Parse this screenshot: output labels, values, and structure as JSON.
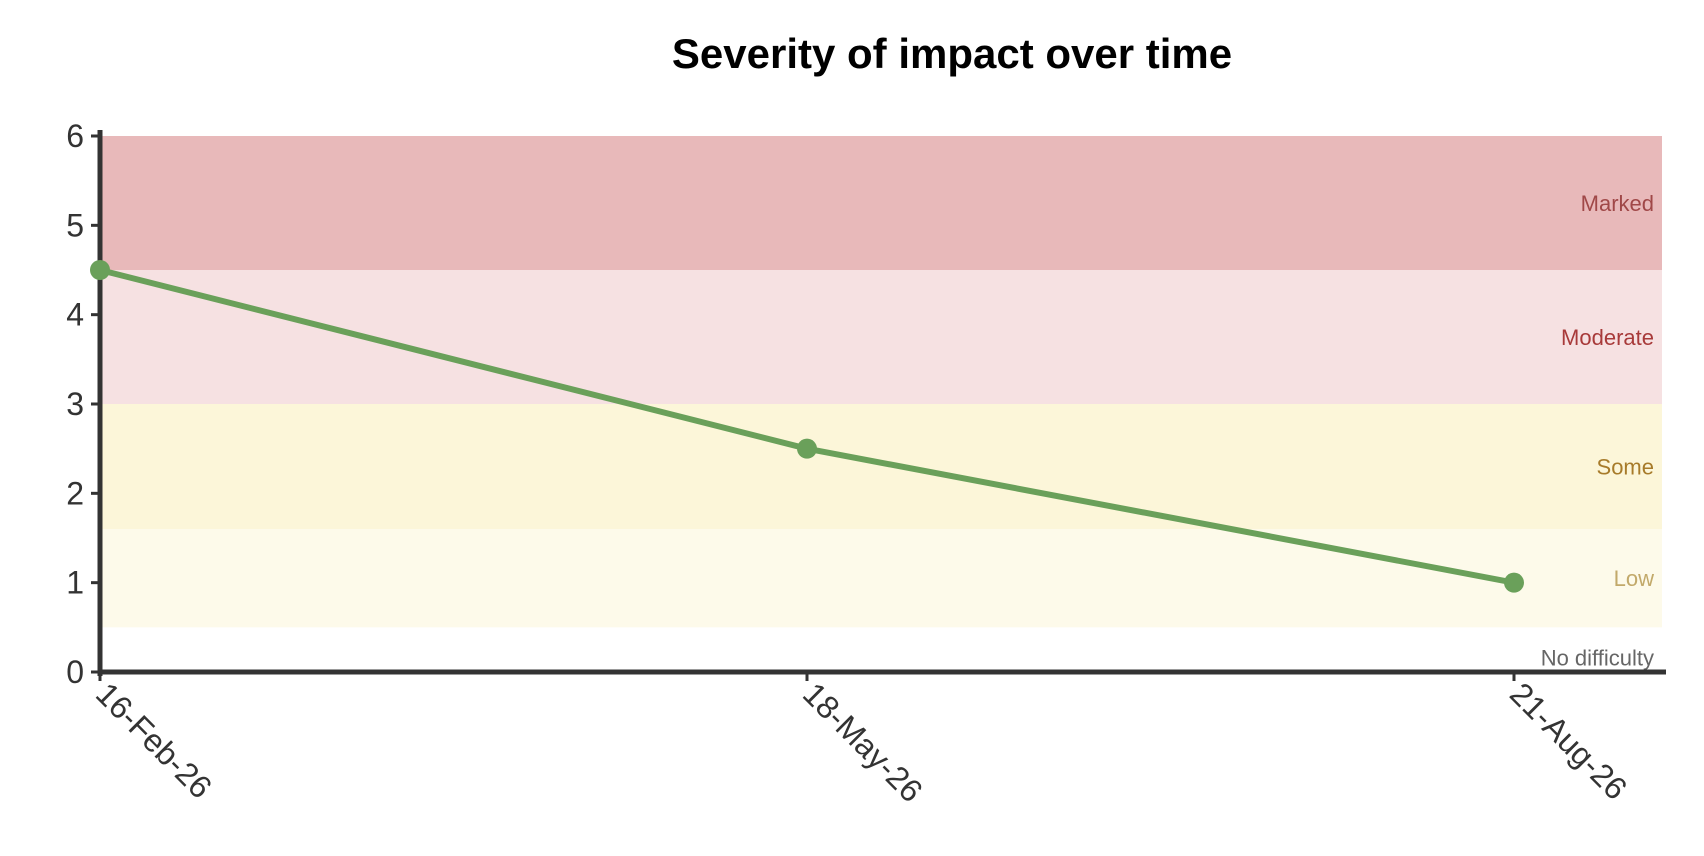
{
  "chart_data": {
    "type": "line",
    "title": "Severity of impact over time",
    "xlabel": "",
    "ylabel": "",
    "x": [
      "16-Feb-26",
      "18-May-26",
      "21-Aug-26"
    ],
    "series": [
      {
        "values": [
          4.5,
          2.5,
          1
        ],
        "color": "#6aa05a"
      }
    ],
    "ylim": [
      0,
      6
    ],
    "yticks": [
      "0",
      "1",
      "2",
      "3",
      "4",
      "5",
      "6"
    ],
    "grid": false,
    "legend": "none",
    "bands": [
      {
        "label": "No difficulty",
        "from": 0,
        "to": 0.5,
        "fill": "#ffffff",
        "text_color": "#666666"
      },
      {
        "label": "Low",
        "from": 0.5,
        "to": 1.6,
        "fill": "#fdfaea",
        "text_color": "#c2a96a"
      },
      {
        "label": "Some",
        "from": 1.6,
        "to": 3,
        "fill": "#fcf6d9",
        "text_color": "#a77b2a"
      },
      {
        "label": "Moderate",
        "from": 3,
        "to": 4.5,
        "fill": "#f6e1e2",
        "text_color": "#a83a3a"
      },
      {
        "label": "Marked",
        "from": 4.5,
        "to": 6,
        "fill": "#e8b9ba",
        "text_color": "#a04848"
      }
    ]
  }
}
